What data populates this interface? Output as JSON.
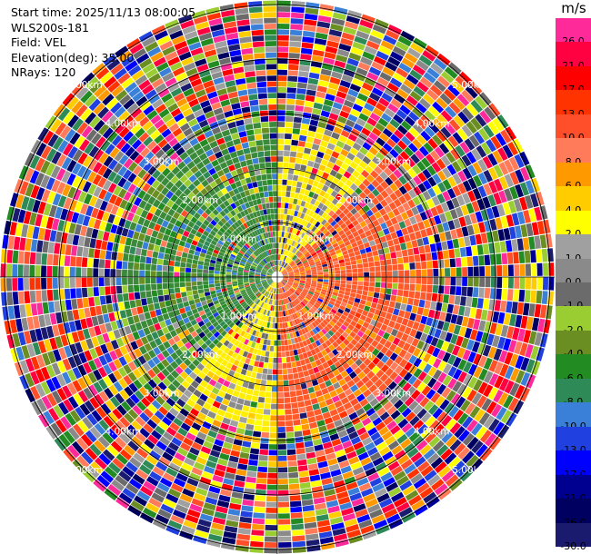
{
  "info": {
    "start_time": "Start time: 2025/11/13 08:00:05",
    "site": "WLS200s-181",
    "field": "Field: VEL",
    "elevation": "Elevation(deg): 35.00",
    "nrays": "NRays: 120"
  },
  "colorbar": {
    "unit": "m/s",
    "levels": [
      {
        "label": "26.0",
        "color": "#ff2a9a"
      },
      {
        "label": "21.0",
        "color": "#ff0040"
      },
      {
        "label": "17.0",
        "color": "#ff0000"
      },
      {
        "label": "13.0",
        "color": "#ff3300"
      },
      {
        "label": "10.0",
        "color": "#ff4f2a"
      },
      {
        "label": "8.0",
        "color": "#ff7b5a"
      },
      {
        "label": "6.0",
        "color": "#ff9900"
      },
      {
        "label": "4.0",
        "color": "#ffcc00"
      },
      {
        "label": "2.0",
        "color": "#ffff00"
      },
      {
        "label": "1.0",
        "color": "#a0a0a0"
      },
      {
        "label": "0.0",
        "color": "#8a8a8a"
      },
      {
        "label": "-1.0",
        "color": "#6b6b6b"
      },
      {
        "label": "-2.0",
        "color": "#9acd32"
      },
      {
        "label": "-4.0",
        "color": "#6b8e23"
      },
      {
        "label": "-6.0",
        "color": "#228b22"
      },
      {
        "label": "-8.0",
        "color": "#2e8b57"
      },
      {
        "label": "-10.0",
        "color": "#3a80d8"
      },
      {
        "label": "-13.0",
        "color": "#2040e0"
      },
      {
        "label": "-17.0",
        "color": "#0000ff"
      },
      {
        "label": "-21.0",
        "color": "#000090"
      },
      {
        "label": "-26.0",
        "color": "#000060"
      },
      {
        "label": "-30.0",
        "color": "#1a1a6e"
      }
    ]
  },
  "range_rings": {
    "labels": [
      "1.00km",
      "2.00km",
      "3.00km",
      "4.00km",
      "5.00km"
    ]
  },
  "velocity_pattern": {
    "receding_sector_color": "#ff5a2a",
    "approaching_sector_color": "#3a8a3a",
    "near_zero_color": "#ffee00"
  }
}
